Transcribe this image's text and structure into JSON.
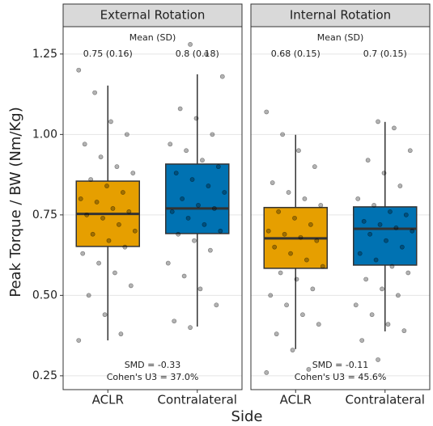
{
  "chart_data": [
    {
      "type": "box",
      "title": "External Rotation",
      "y_label": "Peak Torque / BW (Nm/Kg)",
      "x_label": "Side",
      "categories": [
        "ACLR",
        "Contralateral"
      ],
      "ylim": [
        0.207,
        1.335
      ],
      "yticks": [
        0.25,
        {
          "value": 0.5,
          "label": "0.50"
        },
        0.75,
        {
          "value": 1.0,
          "label": "1.00"
        },
        1.25
      ],
      "grid": true,
      "stats_title": "Mean (SD)",
      "stats": [
        "0.75 (0.16)",
        "0.8 (0.18)"
      ],
      "smd": "SMD = -0.33",
      "u3": "Cohen's U3 = 37.0%",
      "boxes": [
        {
          "color": "#E69F00",
          "min": 0.36,
          "q1": 0.652,
          "median": 0.753,
          "q3": 0.855,
          "max": 1.152
        },
        {
          "color": "#0072B2",
          "min": 0.403,
          "q1": 0.692,
          "median": 0.77,
          "q3": 0.908,
          "max": 1.187
        }
      ],
      "points": [
        [
          1.2,
          1.13,
          1.04,
          1.0,
          0.97,
          0.93,
          0.9,
          0.88,
          0.86,
          0.84,
          0.82,
          0.8,
          0.79,
          0.77,
          0.76,
          0.75,
          0.74,
          0.72,
          0.7,
          0.69,
          0.67,
          0.65,
          0.63,
          0.6,
          0.57,
          0.53,
          0.5,
          0.44,
          0.38,
          0.36
        ],
        [
          1.28,
          1.25,
          1.18,
          1.08,
          1.05,
          1.0,
          0.97,
          0.95,
          0.92,
          0.9,
          0.88,
          0.86,
          0.84,
          0.82,
          0.8,
          0.78,
          0.77,
          0.76,
          0.74,
          0.72,
          0.7,
          0.69,
          0.67,
          0.64,
          0.6,
          0.56,
          0.52,
          0.47,
          0.42,
          0.4
        ]
      ]
    },
    {
      "type": "box",
      "title": "Internal Rotation",
      "categories": [
        "ACLR",
        "Contralateral"
      ],
      "ylim": [
        0.207,
        1.335
      ],
      "yticks": [
        0.25,
        0.5,
        0.75,
        1.0,
        1.25
      ],
      "grid": true,
      "stats_title": "Mean (SD)",
      "stats": [
        "0.68 (0.15)",
        "0.7 (0.15)"
      ],
      "smd": "SMD = -0.11",
      "u3": "Cohen's U3 = 45.6%",
      "boxes": [
        {
          "color": "#E69F00",
          "min": 0.333,
          "q1": 0.584,
          "median": 0.677,
          "q3": 0.773,
          "max": 0.999
        },
        {
          "color": "#0072B2",
          "min": 0.388,
          "q1": 0.594,
          "median": 0.707,
          "q3": 0.775,
          "max": 1.039
        }
      ],
      "points": [
        [
          1.07,
          1.0,
          0.95,
          0.9,
          0.85,
          0.82,
          0.8,
          0.78,
          0.76,
          0.74,
          0.72,
          0.7,
          0.69,
          0.68,
          0.67,
          0.65,
          0.63,
          0.61,
          0.59,
          0.57,
          0.55,
          0.52,
          0.5,
          0.47,
          0.44,
          0.41,
          0.38,
          0.33,
          0.27,
          0.26
        ],
        [
          1.04,
          1.02,
          0.95,
          0.92,
          0.88,
          0.84,
          0.8,
          0.78,
          0.76,
          0.75,
          0.73,
          0.72,
          0.71,
          0.7,
          0.69,
          0.67,
          0.65,
          0.63,
          0.61,
          0.59,
          0.57,
          0.55,
          0.52,
          0.5,
          0.47,
          0.44,
          0.41,
          0.39,
          0.36,
          0.3
        ]
      ]
    }
  ]
}
